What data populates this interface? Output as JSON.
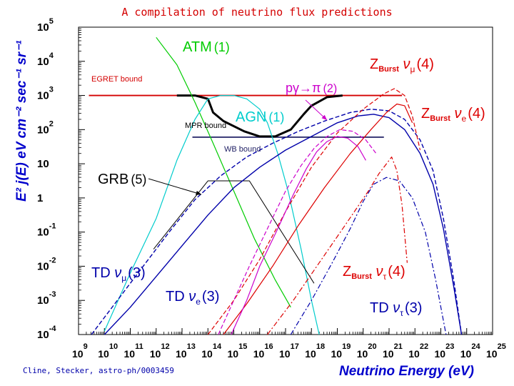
{
  "chart_data": {
    "type": "line",
    "title": "A compilation of neutrino flux predictions",
    "xlabel": "Neutrino Energy (eV)",
    "ylabel": "E² j(E) eV cm⁻² sec⁻¹ sr⁻¹",
    "xscale": "log",
    "yscale": "log",
    "xlim": [
      9,
      25
    ],
    "ylim": [
      -4,
      5
    ],
    "x_ticks": [
      "9",
      "10",
      "11",
      "12",
      "13",
      "14",
      "15",
      "16",
      "17",
      "18",
      "19",
      "20",
      "21",
      "22",
      "23",
      "24",
      "25"
    ],
    "y_ticks": [
      {
        "text": "10",
        "sup": "5",
        "v": 5
      },
      {
        "text": "10",
        "sup": "4",
        "v": 4
      },
      {
        "text": "10",
        "sup": "3",
        "v": 3
      },
      {
        "text": "10",
        "sup": "2",
        "v": 2
      },
      {
        "text": "10",
        "sup": "",
        "v": 1
      },
      {
        "text": "1",
        "sup": "",
        "v": 0
      },
      {
        "text": "10",
        "sup": "-1",
        "v": -1
      },
      {
        "text": "10",
        "sup": "-2",
        "v": -2
      },
      {
        "text": "10",
        "sup": "-3",
        "v": -3
      },
      {
        "text": "10",
        "sup": "-4",
        "v": -4
      }
    ],
    "bounds": [
      {
        "name": "EGRET bound",
        "color": "#d40000",
        "x": [
          9.4,
          21.5
        ],
        "y": [
          3.0,
          3.0
        ]
      },
      {
        "name": "WB bound",
        "color": "#222266",
        "x": [
          13.4,
          20.8
        ],
        "y": [
          1.78,
          1.78
        ]
      }
    ],
    "series": [
      {
        "name": "MPR bound",
        "color": "#000000",
        "style": "solid",
        "width": 3,
        "x": [
          12.8,
          13.5,
          14.0,
          14.2,
          14.6,
          15.4,
          16.0,
          16.6,
          17.2,
          17.7,
          18.0,
          18.6,
          19.2
        ],
        "y": [
          3.0,
          3.0,
          2.9,
          2.5,
          2.25,
          1.95,
          1.8,
          1.8,
          2.0,
          2.45,
          2.7,
          2.95,
          3.0
        ]
      },
      {
        "name": "ATM (1)",
        "color": "#00cc00",
        "style": "solid",
        "width": 1.2,
        "x": [
          12.0,
          12.8,
          13.5,
          14.2,
          15.0,
          15.8,
          16.6,
          17.2
        ],
        "y": [
          4.7,
          3.9,
          2.8,
          1.6,
          0.2,
          -1.2,
          -2.4,
          -3.2
        ]
      },
      {
        "name": "AGN (1)",
        "color": "#00cccc",
        "style": "solid",
        "width": 1.2,
        "x": [
          10.0,
          11.0,
          12.0,
          12.8,
          13.5,
          14.0,
          14.5,
          15.0,
          15.5,
          16.0,
          16.3,
          16.7,
          17.1,
          17.6,
          18.0,
          18.3
        ],
        "y": [
          -3.9,
          -2.2,
          -0.6,
          1.1,
          2.3,
          2.9,
          3.0,
          3.0,
          2.9,
          2.6,
          2.2,
          1.3,
          0.2,
          -1.5,
          -3.0,
          -4.0
        ]
      },
      {
        "name": "GRB (5)",
        "color": "#000000",
        "style": "solid",
        "width": 1.0,
        "x": [
          11.9,
          14.0,
          15.6,
          18.1
        ],
        "y": [
          -1.5,
          0.5,
          0.5,
          -2.5
        ]
      },
      {
        "name": "TD νμ (3)",
        "color": "#0000aa",
        "style": "dashed",
        "width": 1.4,
        "x": [
          9.5,
          10.5,
          11.5,
          12.5,
          13.5,
          14.5,
          15.5,
          16.5,
          17.5,
          18.5,
          19.5,
          20.3,
          21.0,
          21.6,
          22.2,
          22.7,
          23.1,
          23.5,
          23.8
        ],
        "y": [
          -4.0,
          -3.0,
          -2.0,
          -1.0,
          -0.05,
          0.65,
          1.2,
          1.6,
          1.95,
          2.25,
          2.5,
          2.6,
          2.55,
          2.3,
          1.7,
          0.8,
          -0.6,
          -2.4,
          -4.0
        ]
      },
      {
        "name": "TD νe (3)",
        "color": "#0000aa",
        "style": "solid",
        "width": 1.4,
        "x": [
          10.0,
          11.0,
          12.0,
          13.0,
          14.0,
          15.0,
          16.0,
          17.0,
          18.0,
          19.0,
          19.8,
          20.4,
          21.0,
          21.6,
          22.2,
          22.7,
          23.1,
          23.5,
          23.8
        ],
        "y": [
          -4.0,
          -3.2,
          -2.3,
          -1.4,
          -0.5,
          0.3,
          0.9,
          1.4,
          1.8,
          2.2,
          2.4,
          2.45,
          2.35,
          2.0,
          1.3,
          0.4,
          -0.9,
          -2.6,
          -4.0
        ]
      },
      {
        "name": "TD ντ (3)",
        "color": "#0000aa",
        "style": "dashdot",
        "width": 1.2,
        "x": [
          17.2,
          18.0,
          18.8,
          19.5,
          20.0,
          20.4,
          20.9,
          21.4,
          21.9,
          22.4,
          22.8,
          23.2
        ],
        "y": [
          -4.0,
          -3.0,
          -1.9,
          -0.9,
          -0.1,
          0.4,
          0.6,
          0.5,
          0.0,
          -1.0,
          -2.4,
          -4.0
        ]
      },
      {
        "name": "Zburst νμ (4)",
        "color": "#dd0000",
        "style": "dashed",
        "width": 1.2,
        "x": [
          14.0,
          15.0,
          16.0,
          17.0,
          18.0,
          19.0,
          20.0,
          20.8,
          21.2,
          21.6,
          21.9,
          22.2
        ],
        "y": [
          -4.0,
          -3.0,
          -1.8,
          -0.4,
          0.9,
          1.9,
          2.6,
          3.05,
          3.2,
          3.0,
          2.4,
          1.4
        ]
      },
      {
        "name": "Zburst νe (4)",
        "color": "#dd0000",
        "style": "solid",
        "width": 1.2,
        "x": [
          14.6,
          15.5,
          16.5,
          17.5,
          18.5,
          19.5,
          20.3,
          20.9,
          21.3,
          21.6,
          21.9
        ],
        "y": [
          -4.0,
          -3.1,
          -2.0,
          -0.8,
          0.3,
          1.3,
          2.0,
          2.5,
          2.75,
          2.7,
          2.2
        ]
      },
      {
        "name": "Zburst ντ (4)",
        "color": "#dd0000",
        "style": "dashdot",
        "width": 1.2,
        "x": [
          16.3,
          17.3,
          18.3,
          19.3,
          20.2,
          20.6,
          20.9,
          21.1,
          21.3,
          21.5,
          21.7
        ],
        "y": [
          -4.0,
          -3.0,
          -1.9,
          -0.8,
          0.2,
          0.7,
          1.0,
          1.2,
          0.8,
          -0.2,
          -1.9
        ]
      },
      {
        "name": "pγ→π (2)",
        "color": "#cc00cc",
        "style": "solid",
        "width": 1.2,
        "x": [
          14.9,
          15.5,
          16.0,
          16.7,
          17.3,
          17.8,
          18.2,
          18.6,
          19.0,
          19.4,
          19.8,
          20.1
        ],
        "y": [
          -4.0,
          -3.0,
          -2.0,
          -0.9,
          0.1,
          0.85,
          1.35,
          1.65,
          1.8,
          1.75,
          1.5,
          1.1
        ]
      },
      {
        "name": "pγ→π (2) dashed",
        "color": "#cc00cc",
        "style": "dashed",
        "width": 1.2,
        "x": [
          14.4,
          15.0,
          15.6,
          16.3,
          17.0,
          17.6,
          18.1,
          18.6,
          19.1,
          19.6,
          20.1,
          20.5
        ],
        "y": [
          -4.0,
          -3.0,
          -2.0,
          -0.9,
          0.2,
          0.95,
          1.45,
          1.8,
          2.0,
          1.95,
          1.7,
          1.3
        ]
      }
    ],
    "annotations": [
      {
        "text": "EGRET bound",
        "color": "#d40000"
      },
      {
        "text": "MPR bound",
        "color": "#000000"
      },
      {
        "text": "WB bound",
        "color": "#222266"
      },
      {
        "text": "ATM",
        "num": "(1)",
        "color": "#00cc00"
      },
      {
        "text": "AGN",
        "num": "(1)",
        "color": "#00cccc"
      },
      {
        "text": "GRB",
        "num": "(5)",
        "color": "#000000"
      },
      {
        "text": "pγ→π",
        "num": "(2)",
        "color": "#cc00cc"
      },
      {
        "text": "Z",
        "sub": "Burst",
        "nu": "ν",
        "nusub": "μ",
        "num": "(4)",
        "color": "#dd0000"
      },
      {
        "text": "Z",
        "sub": "Burst",
        "nu": "ν",
        "nusub": "e",
        "num": "(4)",
        "color": "#dd0000"
      },
      {
        "text": "Z",
        "sub": "Burst",
        "nu": "ν",
        "nusub": "τ",
        "num": "(4)",
        "color": "#dd0000"
      },
      {
        "text": "TD",
        "nu": "ν",
        "nusub": "μ",
        "num": "(3)",
        "color": "#0000aa"
      },
      {
        "text": "TD",
        "nu": "ν",
        "nusub": "e",
        "num": "(3)",
        "color": "#0000aa"
      },
      {
        "text": "TD",
        "nu": "ν",
        "nusub": "τ",
        "num": "(3)",
        "color": "#0000aa"
      }
    ]
  },
  "credit": "Cline, Stecker, astro-ph/0003459"
}
